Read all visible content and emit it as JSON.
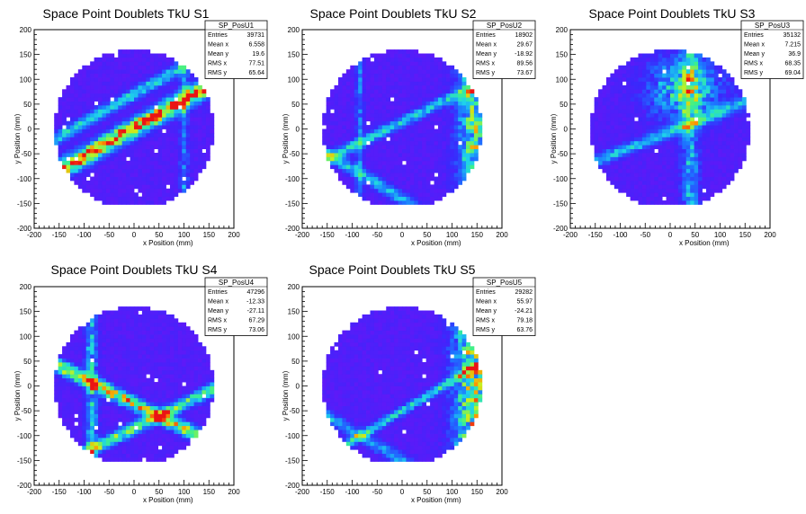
{
  "chart_data": [
    {
      "type": "heatmap",
      "title": "Space Point Doublets TkU S1",
      "xlabel": "x Position (mm)",
      "ylabel": "y Position (mm)",
      "xlim": [
        -200,
        200
      ],
      "ylim": [
        -200,
        200
      ],
      "ticks": [
        "-200",
        "-150",
        "-100",
        "-50",
        "0",
        "50",
        "100",
        "150",
        "200"
      ],
      "stats": {
        "name": "SP_PosU1",
        "rows": [
          [
            "Entries",
            "39731"
          ],
          [
            "Mean x",
            "6.558"
          ],
          [
            "Mean y",
            "19.6"
          ],
          [
            "RMS x",
            "77.51"
          ],
          [
            "RMS y",
            "65.64"
          ]
        ]
      },
      "features": [
        {
          "kind": "band",
          "slope": 0.57,
          "intercept": 2,
          "width": 12,
          "peak": 0.95
        },
        {
          "kind": "band",
          "slope": 0.57,
          "intercept": 70,
          "width": 8,
          "peak": 0.45
        },
        {
          "kind": "vband",
          "x": 100,
          "width": 6,
          "peak": 0.3
        }
      ]
    },
    {
      "type": "heatmap",
      "title": "Space Point Doublets TkU S2",
      "xlabel": "x Position (mm)",
      "ylabel": "y Position (mm)",
      "xlim": [
        -200,
        200
      ],
      "ylim": [
        -200,
        200
      ],
      "ticks": [
        "-200",
        "-150",
        "-100",
        "-50",
        "0",
        "50",
        "100",
        "150",
        "200"
      ],
      "stats": {
        "name": "SP_PosU2",
        "rows": [
          [
            "Entries",
            "18902"
          ],
          [
            "Mean x",
            "29.67"
          ],
          [
            "Mean y",
            "-18.92"
          ],
          [
            "RMS x",
            "89.56"
          ],
          [
            "RMS y",
            "73.67"
          ]
        ]
      },
      "features": [
        {
          "kind": "band",
          "slope": 0.5,
          "intercept": 15,
          "width": 7,
          "peak": 0.45
        },
        {
          "kind": "vband",
          "x": 150,
          "width": 25,
          "peak": 0.7
        },
        {
          "kind": "band",
          "slope": -0.6,
          "intercept": -140,
          "width": 8,
          "peak": 0.4
        },
        {
          "kind": "vband",
          "x": -85,
          "width": 5,
          "peak": 0.3
        }
      ]
    },
    {
      "type": "heatmap",
      "title": "Space Point Doublets TkU S3",
      "xlabel": "x Position (mm)",
      "ylabel": "y Position (mm)",
      "xlim": [
        -200,
        200
      ],
      "ylim": [
        -200,
        200
      ],
      "ticks": [
        "-200",
        "-150",
        "-100",
        "-50",
        "0",
        "50",
        "100",
        "150",
        "200"
      ],
      "stats": {
        "name": "SP_PosU3",
        "rows": [
          [
            "Entries",
            "35132"
          ],
          [
            "Mean x",
            "7.215"
          ],
          [
            "Mean y",
            "36.9"
          ],
          [
            "RMS x",
            "68.35"
          ],
          [
            "RMS y",
            "69.04"
          ]
        ]
      },
      "features": [
        {
          "kind": "blob",
          "cx": 30,
          "cy": 80,
          "rx": 70,
          "ry": 60,
          "peak": 0.55
        },
        {
          "kind": "band",
          "slope": 0.4,
          "intercept": -5,
          "width": 8,
          "peak": 0.4
        },
        {
          "kind": "vband",
          "x": 40,
          "width": 12,
          "peak": 0.4
        }
      ]
    },
    {
      "type": "heatmap",
      "title": "Space Point Doublets TkU S4",
      "xlabel": "x Position (mm)",
      "ylabel": "y Position (mm)",
      "xlim": [
        -200,
        200
      ],
      "ylim": [
        -200,
        200
      ],
      "ticks": [
        "-200",
        "-150",
        "-100",
        "-50",
        "0",
        "50",
        "100",
        "150",
        "200"
      ],
      "stats": {
        "name": "SP_PosU4",
        "rows": [
          [
            "Entries",
            "47296"
          ],
          [
            "Mean x",
            "-12.33"
          ],
          [
            "Mean y",
            "-27.11"
          ],
          [
            "RMS x",
            "67.29"
          ],
          [
            "RMS y",
            "73.06"
          ]
        ]
      },
      "features": [
        {
          "kind": "band",
          "slope": -0.5,
          "intercept": -35,
          "width": 9,
          "peak": 0.8
        },
        {
          "kind": "band",
          "slope": 0.5,
          "intercept": -85,
          "width": 8,
          "peak": 0.6
        },
        {
          "kind": "vband",
          "x": -85,
          "width": 8,
          "peak": 0.45
        }
      ]
    },
    {
      "type": "heatmap",
      "title": "Space Point Doublets TkU S5",
      "xlabel": "x Position (mm)",
      "ylabel": "y Position (mm)",
      "xlim": [
        -200,
        200
      ],
      "ylim": [
        -200,
        200
      ],
      "ticks": [
        "-200",
        "-150",
        "-100",
        "-50",
        "0",
        "50",
        "100",
        "150",
        "200"
      ],
      "stats": {
        "name": "SP_PosU5",
        "rows": [
          [
            "Entries",
            "29282"
          ],
          [
            "Mean x",
            "55.97"
          ],
          [
            "Mean y",
            "-24.21"
          ],
          [
            "RMS x",
            "79.18"
          ],
          [
            "RMS y",
            "63.76"
          ]
        ]
      },
      "features": [
        {
          "kind": "band",
          "slope": 0.6,
          "intercept": -50,
          "width": 6,
          "peak": 0.45
        },
        {
          "kind": "vband",
          "x": 145,
          "width": 28,
          "peak": 0.75
        },
        {
          "kind": "band",
          "slope": -0.6,
          "intercept": -150,
          "width": 8,
          "peak": 0.35
        }
      ]
    }
  ]
}
